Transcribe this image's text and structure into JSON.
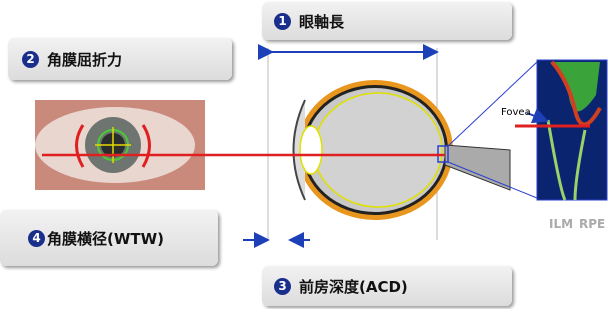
{
  "labels": [
    {
      "number": "1",
      "text": "眼軸長"
    },
    {
      "number": "2",
      "text": "角膜屈折力"
    },
    {
      "number": "3",
      "text": "前房深度(ACD)"
    },
    {
      "number": "4",
      "text": "角膜横径(WTW)"
    }
  ],
  "oct": {
    "fovea": "Fovea",
    "ilm": "ILM",
    "rpe": "RPE"
  }
}
